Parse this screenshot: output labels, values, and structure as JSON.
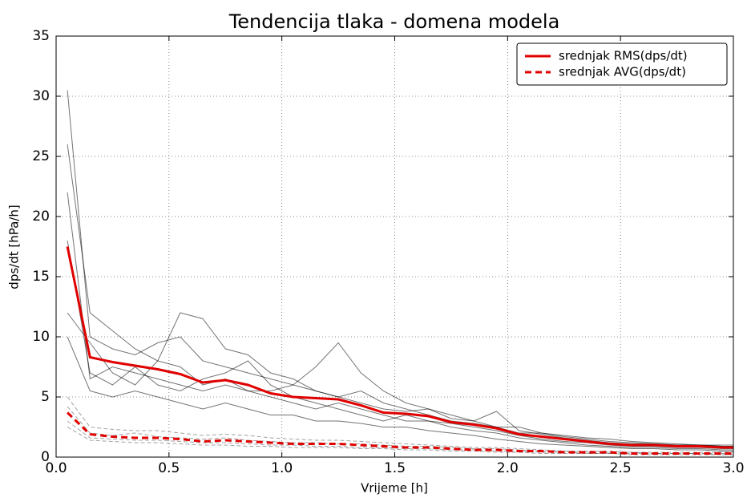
{
  "chart_data": {
    "type": "line",
    "title": "Tendencija tlaka - domena modela",
    "xlabel": "Vrijeme [h]",
    "ylabel": "dps/dt [hPa/h]",
    "x": [
      0.05,
      0.15,
      0.25,
      0.35,
      0.45,
      0.55,
      0.65,
      0.75,
      0.85,
      0.95,
      1.05,
      1.15,
      1.25,
      1.35,
      1.45,
      1.55,
      1.65,
      1.75,
      1.85,
      1.95,
      2.05,
      2.15,
      2.25,
      2.35,
      2.45,
      2.55,
      2.65,
      2.75,
      2.85,
      2.95,
      3.0
    ],
    "series": [
      {
        "color": "#000000",
        "linestyle": "solid",
        "values": [
          30.5,
          10.0,
          9.0,
          8.5,
          9.5,
          10.0,
          8.0,
          7.5,
          7.0,
          6.5,
          6.0,
          7.5,
          9.5,
          7.0,
          5.5,
          4.5,
          4.0,
          3.5,
          3.0,
          2.5,
          2.5,
          2.0,
          1.8,
          1.6,
          1.5,
          1.3,
          1.2,
          1.1,
          1.0,
          1.0,
          1.0
        ]
      },
      {
        "color": "#000000",
        "linestyle": "solid",
        "values": [
          22.0,
          6.5,
          7.5,
          7.0,
          6.5,
          6.0,
          5.5,
          6.0,
          5.5,
          5.0,
          4.5,
          4.0,
          4.5,
          4.0,
          3.5,
          3.0,
          3.0,
          2.8,
          2.5,
          2.2,
          1.8,
          1.5,
          1.3,
          1.2,
          1.0,
          0.9,
          0.9,
          0.8,
          0.8,
          0.7,
          0.7
        ]
      },
      {
        "color": "#000000",
        "linestyle": "solid",
        "values": [
          12.0,
          9.5,
          7.0,
          6.0,
          8.0,
          12.0,
          11.5,
          9.0,
          8.5,
          7.0,
          6.5,
          5.5,
          5.0,
          5.5,
          4.5,
          4.0,
          3.5,
          3.0,
          2.8,
          2.5,
          2.0,
          2.0,
          1.7,
          1.5,
          1.3,
          1.2,
          1.1,
          1.0,
          1.0,
          0.9,
          0.9
        ]
      },
      {
        "color": "#000000",
        "linestyle": "solid",
        "values": [
          18.0,
          7.0,
          6.0,
          7.5,
          6.0,
          5.5,
          6.5,
          7.0,
          8.0,
          6.0,
          5.0,
          4.5,
          4.0,
          3.5,
          3.0,
          3.5,
          3.0,
          2.5,
          2.2,
          2.0,
          1.6,
          1.4,
          1.2,
          1.0,
          0.9,
          0.8,
          0.8,
          0.7,
          0.7,
          0.6,
          0.6
        ]
      },
      {
        "color": "#000000",
        "linestyle": "solid",
        "values": [
          26.0,
          12.0,
          10.5,
          9.0,
          8.0,
          7.5,
          6.0,
          6.5,
          5.5,
          5.5,
          6.0,
          5.5,
          5.0,
          4.5,
          4.0,
          3.8,
          4.0,
          3.2,
          3.0,
          3.8,
          2.2,
          1.9,
          1.6,
          1.4,
          1.2,
          1.1,
          1.1,
          1.0,
          1.0,
          0.9,
          0.9
        ]
      },
      {
        "color": "#000000",
        "linestyle": "solid",
        "values": [
          10.0,
          5.5,
          5.0,
          5.5,
          5.0,
          4.5,
          4.0,
          4.5,
          4.0,
          3.5,
          3.5,
          3.0,
          3.0,
          2.8,
          2.5,
          2.5,
          2.2,
          2.0,
          1.8,
          1.5,
          1.3,
          1.1,
          1.0,
          0.9,
          0.8,
          0.7,
          0.7,
          0.6,
          0.6,
          0.5,
          0.5
        ]
      },
      {
        "color": "#555555",
        "linestyle": "dashed",
        "values": [
          5.0,
          2.5,
          2.3,
          2.2,
          2.2,
          2.0,
          1.8,
          1.9,
          1.8,
          1.6,
          1.5,
          1.4,
          1.4,
          1.3,
          1.2,
          1.1,
          1.0,
          0.9,
          0.8,
          0.8,
          0.7,
          0.6,
          0.5,
          0.5,
          0.5,
          0.4,
          0.4,
          0.4,
          0.4,
          0.4,
          0.4
        ]
      },
      {
        "color": "#555555",
        "linestyle": "dashed",
        "values": [
          2.5,
          1.4,
          1.3,
          1.2,
          1.2,
          1.1,
          1.0,
          1.0,
          0.9,
          0.9,
          0.8,
          0.8,
          0.8,
          0.7,
          0.7,
          0.6,
          0.6,
          0.5,
          0.5,
          0.4,
          0.4,
          0.3,
          0.3,
          0.3,
          0.3,
          0.2,
          0.2,
          0.2,
          0.2,
          0.2,
          0.2
        ]
      },
      {
        "color": "#555555",
        "linestyle": "dashed",
        "values": [
          4.2,
          2.0,
          1.8,
          2.0,
          1.7,
          1.6,
          1.5,
          1.6,
          1.4,
          1.3,
          1.2,
          1.2,
          1.1,
          1.1,
          1.0,
          0.9,
          0.9,
          0.8,
          0.7,
          0.7,
          0.6,
          0.5,
          0.5,
          0.4,
          0.4,
          0.4,
          0.3,
          0.3,
          0.3,
          0.3,
          0.3
        ]
      },
      {
        "color": "#555555",
        "linestyle": "dashed",
        "values": [
          3.0,
          1.6,
          1.5,
          1.4,
          1.4,
          1.3,
          1.2,
          1.2,
          1.1,
          1.0,
          1.0,
          0.9,
          0.9,
          0.8,
          0.8,
          0.7,
          0.7,
          0.6,
          0.6,
          0.5,
          0.5,
          0.4,
          0.4,
          0.3,
          0.3,
          0.3,
          0.3,
          0.3,
          0.3,
          0.2,
          0.2
        ]
      },
      {
        "name": "srednjak RMS(dps/dt)",
        "color": "#e00000",
        "linestyle": "solid",
        "values": [
          17.5,
          8.3,
          7.9,
          7.6,
          7.3,
          6.9,
          6.2,
          6.4,
          6.0,
          5.3,
          5.0,
          4.9,
          4.8,
          4.3,
          3.7,
          3.6,
          3.4,
          2.9,
          2.7,
          2.4,
          1.9,
          1.7,
          1.5,
          1.3,
          1.1,
          1.0,
          1.0,
          0.9,
          0.9,
          0.8,
          0.8
        ]
      },
      {
        "name": "srednjak AVG(dps/dt)",
        "color": "#e00000",
        "linestyle": "dashed",
        "values": [
          3.7,
          1.9,
          1.7,
          1.6,
          1.6,
          1.5,
          1.3,
          1.4,
          1.3,
          1.2,
          1.1,
          1.1,
          1.1,
          1.0,
          0.9,
          0.8,
          0.8,
          0.7,
          0.6,
          0.6,
          0.5,
          0.5,
          0.4,
          0.4,
          0.4,
          0.3,
          0.3,
          0.3,
          0.3,
          0.3,
          0.3
        ]
      }
    ],
    "xlim": [
      0,
      3
    ],
    "xticks": [
      {
        "value": 0,
        "label": "0.0"
      },
      0.5,
      {
        "value": 1,
        "label": "1.0"
      },
      1.5,
      {
        "value": 2,
        "label": "2.0"
      },
      2.5,
      {
        "value": 3,
        "label": "3.0"
      }
    ],
    "ylim": [
      0,
      35
    ],
    "yticks": [
      0,
      5,
      10,
      15,
      20,
      25,
      30,
      35
    ],
    "grid": true,
    "legend": "upper right"
  }
}
